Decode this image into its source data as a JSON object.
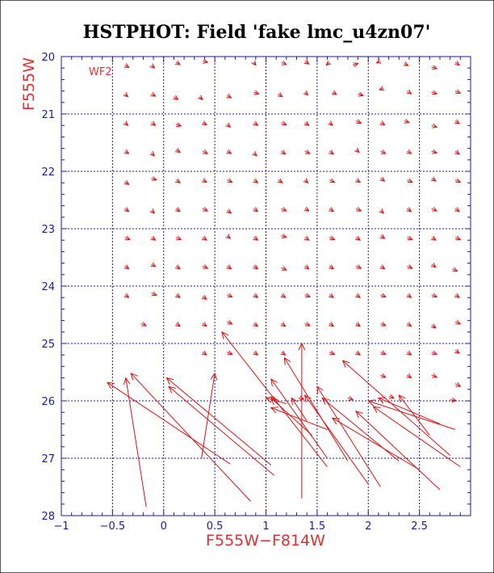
{
  "colors": {
    "axis": "#1a1aa6",
    "grid": "#1a1aa6",
    "vector": "#e01010",
    "label": "#e03030"
  },
  "chart_data": {
    "type": "vector",
    "title": "HSTPHOT: Field 'fake lmc_u4zn07'",
    "xlabel": "F555W−F814W",
    "ylabel": "F555W",
    "panel_label": "WF2",
    "xlim": [
      -1.0,
      3.0
    ],
    "ylim": [
      28.0,
      20.0
    ],
    "y_inverted": true,
    "grid": true,
    "x_ticks": [
      {
        "value": -1,
        "label": "−1"
      },
      {
        "value": -0.5,
        "label": "−0.5"
      },
      {
        "value": 0,
        "label": "0"
      },
      {
        "value": 0.5,
        "label": "0.5"
      },
      {
        "value": 1,
        "label": "1"
      },
      {
        "value": 1.5,
        "label": "1.5"
      },
      {
        "value": 2,
        "label": "2"
      },
      {
        "value": 2.5,
        "label": "2.5"
      }
    ],
    "y_ticks": [
      {
        "value": 20,
        "label": "20"
      },
      {
        "value": 21,
        "label": "21"
      },
      {
        "value": 22,
        "label": "22"
      },
      {
        "value": 23,
        "label": "23"
      },
      {
        "value": 24,
        "label": "24"
      },
      {
        "value": 25,
        "label": "25"
      },
      {
        "value": 26,
        "label": "26"
      },
      {
        "value": 27,
        "label": "27"
      },
      {
        "value": 28,
        "label": "28"
      }
    ],
    "x_grid": [
      -0.5,
      0,
      0.5,
      1,
      1.5,
      2,
      2.5
    ],
    "y_grid": [
      21,
      22,
      23,
      24,
      25,
      26,
      27
    ],
    "small_vectors": [
      {
        "x": -0.38,
        "y": 20.15,
        "dx": 0.04,
        "dy": 0.04
      },
      {
        "x": -0.12,
        "y": 20.15,
        "dx": 0.03,
        "dy": 0.05
      },
      {
        "x": 0.12,
        "y": 20.1,
        "dx": 0.04,
        "dy": 0.04
      },
      {
        "x": 0.38,
        "y": 20.08,
        "dx": 0.05,
        "dy": 0.02
      },
      {
        "x": 0.88,
        "y": 20.1,
        "dx": 0.02,
        "dy": 0.05
      },
      {
        "x": 1.15,
        "y": 20.1,
        "dx": 0.05,
        "dy": 0.04
      },
      {
        "x": 1.38,
        "y": 20.08,
        "dx": 0.04,
        "dy": 0.05
      },
      {
        "x": 1.62,
        "y": 20.1,
        "dx": -0.03,
        "dy": 0.05
      },
      {
        "x": 1.85,
        "y": 20.15,
        "dx": 0.05,
        "dy": -0.03
      },
      {
        "x": 2.12,
        "y": 20.08,
        "dx": -0.04,
        "dy": 0.03
      },
      {
        "x": 2.35,
        "y": 20.12,
        "dx": 0.04,
        "dy": 0.04
      },
      {
        "x": 2.62,
        "y": 20.18,
        "dx": 0.05,
        "dy": 0.03
      },
      {
        "x": 2.85,
        "y": 20.1,
        "dx": 0.04,
        "dy": 0.05
      },
      {
        "x": -0.38,
        "y": 20.65,
        "dx": 0.03,
        "dy": 0.05
      },
      {
        "x": -0.12,
        "y": 20.65,
        "dx": 0.04,
        "dy": 0.04
      },
      {
        "x": 0.1,
        "y": 20.7,
        "dx": 0.04,
        "dy": 0.05
      },
      {
        "x": 0.35,
        "y": 20.7,
        "dx": 0.03,
        "dy": 0.05
      },
      {
        "x": 0.62,
        "y": 20.68,
        "dx": 0.04,
        "dy": 0.04
      },
      {
        "x": 0.88,
        "y": 20.62,
        "dx": 0.05,
        "dy": 0.03
      },
      {
        "x": 1.12,
        "y": 20.65,
        "dx": 0.04,
        "dy": 0.05
      },
      {
        "x": 1.38,
        "y": 20.62,
        "dx": 0.03,
        "dy": 0.05
      },
      {
        "x": 1.65,
        "y": 20.62,
        "dx": 0.04,
        "dy": 0.04
      },
      {
        "x": 1.9,
        "y": 20.65,
        "dx": 0.05,
        "dy": 0.03
      },
      {
        "x": 2.15,
        "y": 20.55,
        "dx": -0.04,
        "dy": 0.03
      },
      {
        "x": 2.38,
        "y": 20.6,
        "dx": 0.04,
        "dy": 0.05
      },
      {
        "x": 2.62,
        "y": 20.62,
        "dx": 0.05,
        "dy": 0.03
      },
      {
        "x": 2.85,
        "y": 20.6,
        "dx": 0.05,
        "dy": 0.04
      },
      {
        "x": -0.38,
        "y": 21.15,
        "dx": 0.03,
        "dy": 0.05
      },
      {
        "x": -0.12,
        "y": 21.15,
        "dx": 0.04,
        "dy": 0.05
      },
      {
        "x": 0.12,
        "y": 21.18,
        "dx": 0.05,
        "dy": 0.03
      },
      {
        "x": 0.38,
        "y": 21.15,
        "dx": 0.04,
        "dy": 0.04
      },
      {
        "x": 0.62,
        "y": 21.18,
        "dx": 0.03,
        "dy": 0.05
      },
      {
        "x": 0.88,
        "y": 21.15,
        "dx": 0.04,
        "dy": 0.05
      },
      {
        "x": 1.15,
        "y": 21.15,
        "dx": 0.05,
        "dy": 0.04
      },
      {
        "x": 1.38,
        "y": 21.15,
        "dx": 0.04,
        "dy": 0.05
      },
      {
        "x": 1.62,
        "y": 21.15,
        "dx": 0.03,
        "dy": 0.05
      },
      {
        "x": 1.88,
        "y": 21.12,
        "dx": 0.05,
        "dy": 0.04
      },
      {
        "x": 2.12,
        "y": 21.15,
        "dx": 0.04,
        "dy": 0.04
      },
      {
        "x": 2.35,
        "y": 21.12,
        "dx": 0.05,
        "dy": 0.03
      },
      {
        "x": 2.62,
        "y": 21.2,
        "dx": 0.05,
        "dy": 0.03
      },
      {
        "x": 2.85,
        "y": 21.12,
        "dx": 0.04,
        "dy": 0.05
      },
      {
        "x": -0.38,
        "y": 21.65,
        "dx": 0.04,
        "dy": 0.04
      },
      {
        "x": -0.12,
        "y": 21.68,
        "dx": 0.03,
        "dy": 0.05
      },
      {
        "x": 0.12,
        "y": 21.62,
        "dx": 0.04,
        "dy": 0.05
      },
      {
        "x": 0.38,
        "y": 21.65,
        "dx": 0.05,
        "dy": 0.04
      },
      {
        "x": 0.62,
        "y": 21.65,
        "dx": 0.04,
        "dy": 0.04
      },
      {
        "x": 0.88,
        "y": 21.68,
        "dx": 0.03,
        "dy": 0.05
      },
      {
        "x": 1.15,
        "y": 21.65,
        "dx": 0.04,
        "dy": 0.05
      },
      {
        "x": 1.38,
        "y": 21.65,
        "dx": 0.05,
        "dy": 0.04
      },
      {
        "x": 1.62,
        "y": 21.65,
        "dx": 0.04,
        "dy": 0.05
      },
      {
        "x": 1.88,
        "y": 21.62,
        "dx": 0.03,
        "dy": 0.05
      },
      {
        "x": 2.12,
        "y": 21.65,
        "dx": 0.05,
        "dy": 0.04
      },
      {
        "x": 2.38,
        "y": 21.65,
        "dx": 0.04,
        "dy": 0.04
      },
      {
        "x": 2.62,
        "y": 21.65,
        "dx": 0.05,
        "dy": 0.03
      },
      {
        "x": 2.85,
        "y": 21.65,
        "dx": 0.04,
        "dy": 0.05
      },
      {
        "x": -0.38,
        "y": 22.18,
        "dx": 0.04,
        "dy": 0.05
      },
      {
        "x": -0.12,
        "y": 22.12,
        "dx": 0.05,
        "dy": 0.03
      },
      {
        "x": 0.12,
        "y": 22.15,
        "dx": 0.04,
        "dy": 0.05
      },
      {
        "x": 0.38,
        "y": 22.15,
        "dx": 0.04,
        "dy": 0.04
      },
      {
        "x": 0.62,
        "y": 22.15,
        "dx": 0.05,
        "dy": 0.04
      },
      {
        "x": 0.88,
        "y": 22.15,
        "dx": 0.04,
        "dy": 0.05
      },
      {
        "x": 1.12,
        "y": 22.15,
        "dx": 0.04,
        "dy": 0.05
      },
      {
        "x": 1.38,
        "y": 22.15,
        "dx": 0.03,
        "dy": 0.05
      },
      {
        "x": 1.62,
        "y": 22.15,
        "dx": 0.05,
        "dy": 0.04
      },
      {
        "x": 1.88,
        "y": 22.15,
        "dx": 0.04,
        "dy": 0.04
      },
      {
        "x": 2.12,
        "y": 22.12,
        "dx": 0.04,
        "dy": 0.05
      },
      {
        "x": 2.38,
        "y": 22.15,
        "dx": 0.05,
        "dy": 0.04
      },
      {
        "x": 2.62,
        "y": 22.12,
        "dx": 0.04,
        "dy": 0.05
      },
      {
        "x": 2.85,
        "y": 22.15,
        "dx": 0.05,
        "dy": 0.04
      },
      {
        "x": -0.38,
        "y": 22.65,
        "dx": 0.04,
        "dy": 0.05
      },
      {
        "x": -0.12,
        "y": 22.68,
        "dx": 0.03,
        "dy": 0.05
      },
      {
        "x": 0.12,
        "y": 22.65,
        "dx": 0.04,
        "dy": 0.05
      },
      {
        "x": 0.38,
        "y": 22.65,
        "dx": 0.05,
        "dy": 0.04
      },
      {
        "x": 0.62,
        "y": 22.68,
        "dx": 0.04,
        "dy": 0.05
      },
      {
        "x": 0.88,
        "y": 22.65,
        "dx": 0.04,
        "dy": 0.05
      },
      {
        "x": 1.15,
        "y": 22.65,
        "dx": 0.05,
        "dy": 0.04
      },
      {
        "x": 1.38,
        "y": 22.65,
        "dx": 0.04,
        "dy": 0.04
      },
      {
        "x": 1.62,
        "y": 22.65,
        "dx": 0.04,
        "dy": 0.05
      },
      {
        "x": 1.88,
        "y": 22.65,
        "dx": 0.05,
        "dy": 0.04
      },
      {
        "x": 2.12,
        "y": 22.68,
        "dx": 0.03,
        "dy": 0.05
      },
      {
        "x": 2.38,
        "y": 22.65,
        "dx": 0.04,
        "dy": 0.05
      },
      {
        "x": 2.62,
        "y": 22.65,
        "dx": 0.05,
        "dy": 0.04
      },
      {
        "x": 2.85,
        "y": 22.65,
        "dx": 0.04,
        "dy": 0.05
      },
      {
        "x": -0.38,
        "y": 23.15,
        "dx": 0.05,
        "dy": 0.04
      },
      {
        "x": -0.12,
        "y": 23.15,
        "dx": 0.04,
        "dy": 0.05
      },
      {
        "x": 0.12,
        "y": 23.15,
        "dx": 0.05,
        "dy": 0.04
      },
      {
        "x": 0.38,
        "y": 23.15,
        "dx": 0.04,
        "dy": 0.05
      },
      {
        "x": 0.62,
        "y": 23.12,
        "dx": 0.03,
        "dy": 0.05
      },
      {
        "x": 0.88,
        "y": 23.15,
        "dx": 0.04,
        "dy": 0.05
      },
      {
        "x": 1.15,
        "y": 23.12,
        "dx": 0.05,
        "dy": 0.03
      },
      {
        "x": 1.38,
        "y": 23.15,
        "dx": 0.04,
        "dy": 0.05
      },
      {
        "x": 1.62,
        "y": 23.15,
        "dx": 0.05,
        "dy": 0.04
      },
      {
        "x": 1.88,
        "y": 23.15,
        "dx": 0.04,
        "dy": 0.05
      },
      {
        "x": 2.12,
        "y": 23.12,
        "dx": 0.04,
        "dy": 0.05
      },
      {
        "x": 2.38,
        "y": 23.15,
        "dx": 0.05,
        "dy": 0.04
      },
      {
        "x": 2.62,
        "y": 23.15,
        "dx": 0.04,
        "dy": 0.05
      },
      {
        "x": 2.85,
        "y": 23.15,
        "dx": 0.05,
        "dy": 0.04
      },
      {
        "x": -0.38,
        "y": 23.65,
        "dx": 0.04,
        "dy": 0.05
      },
      {
        "x": -0.12,
        "y": 23.62,
        "dx": 0.04,
        "dy": 0.04
      },
      {
        "x": 0.12,
        "y": 23.65,
        "dx": 0.04,
        "dy": 0.05
      },
      {
        "x": 0.38,
        "y": 23.65,
        "dx": 0.05,
        "dy": 0.04
      },
      {
        "x": 0.62,
        "y": 23.65,
        "dx": 0.04,
        "dy": 0.05
      },
      {
        "x": 0.88,
        "y": 23.65,
        "dx": 0.04,
        "dy": 0.05
      },
      {
        "x": 1.15,
        "y": 23.68,
        "dx": 0.05,
        "dy": 0.04
      },
      {
        "x": 1.38,
        "y": 23.65,
        "dx": 0.04,
        "dy": 0.05
      },
      {
        "x": 1.62,
        "y": 23.65,
        "dx": 0.04,
        "dy": 0.05
      },
      {
        "x": 1.88,
        "y": 23.65,
        "dx": 0.05,
        "dy": 0.04
      },
      {
        "x": 2.12,
        "y": 23.65,
        "dx": 0.04,
        "dy": 0.05
      },
      {
        "x": 2.38,
        "y": 23.65,
        "dx": 0.05,
        "dy": 0.04
      },
      {
        "x": 2.62,
        "y": 23.62,
        "dx": 0.04,
        "dy": 0.05
      },
      {
        "x": 2.82,
        "y": 23.7,
        "dx": 0.05,
        "dy": 0.04
      },
      {
        "x": -0.38,
        "y": 24.15,
        "dx": 0.04,
        "dy": 0.05
      },
      {
        "x": -0.12,
        "y": 24.12,
        "dx": 0.05,
        "dy": 0.04
      },
      {
        "x": 0.12,
        "y": 24.15,
        "dx": 0.04,
        "dy": 0.05
      },
      {
        "x": 0.38,
        "y": 24.18,
        "dx": 0.04,
        "dy": 0.05
      },
      {
        "x": 0.62,
        "y": 24.15,
        "dx": 0.05,
        "dy": 0.04
      },
      {
        "x": 0.88,
        "y": 24.15,
        "dx": 0.04,
        "dy": 0.05
      },
      {
        "x": 1.15,
        "y": 24.15,
        "dx": 0.04,
        "dy": 0.05
      },
      {
        "x": 1.38,
        "y": 24.15,
        "dx": 0.05,
        "dy": 0.04
      },
      {
        "x": 1.62,
        "y": 24.15,
        "dx": 0.04,
        "dy": 0.05
      },
      {
        "x": 1.88,
        "y": 24.15,
        "dx": 0.04,
        "dy": 0.05
      },
      {
        "x": 2.12,
        "y": 24.15,
        "dx": 0.05,
        "dy": 0.04
      },
      {
        "x": 2.38,
        "y": 24.15,
        "dx": 0.04,
        "dy": 0.05
      },
      {
        "x": 2.62,
        "y": 24.15,
        "dx": 0.05,
        "dy": 0.04
      },
      {
        "x": 2.85,
        "y": 24.15,
        "dx": 0.04,
        "dy": 0.05
      },
      {
        "x": -0.22,
        "y": 24.65,
        "dx": 0.05,
        "dy": 0.04
      },
      {
        "x": 0.12,
        "y": 24.65,
        "dx": 0.04,
        "dy": 0.05
      },
      {
        "x": 0.38,
        "y": 24.65,
        "dx": 0.04,
        "dy": 0.05
      },
      {
        "x": 0.62,
        "y": 24.62,
        "dx": 0.05,
        "dy": 0.04
      },
      {
        "x": 0.88,
        "y": 24.65,
        "dx": 0.04,
        "dy": 0.05
      },
      {
        "x": 1.15,
        "y": 24.65,
        "dx": 0.04,
        "dy": 0.05
      },
      {
        "x": 1.38,
        "y": 24.65,
        "dx": 0.05,
        "dy": 0.04
      },
      {
        "x": 1.62,
        "y": 24.65,
        "dx": 0.04,
        "dy": 0.05
      },
      {
        "x": 1.88,
        "y": 24.65,
        "dx": 0.04,
        "dy": 0.05
      },
      {
        "x": 2.12,
        "y": 24.65,
        "dx": 0.05,
        "dy": 0.04
      },
      {
        "x": 2.38,
        "y": 24.65,
        "dx": 0.04,
        "dy": 0.05
      },
      {
        "x": 2.62,
        "y": 24.68,
        "dx": 0.04,
        "dy": 0.05
      },
      {
        "x": 2.85,
        "y": 24.62,
        "dx": 0.05,
        "dy": 0.04
      },
      {
        "x": 0.38,
        "y": 25.15,
        "dx": 0.04,
        "dy": 0.05
      },
      {
        "x": 0.62,
        "y": 25.15,
        "dx": 0.05,
        "dy": 0.04
      },
      {
        "x": 0.88,
        "y": 25.15,
        "dx": 0.04,
        "dy": 0.05
      },
      {
        "x": 1.15,
        "y": 25.15,
        "dx": 0.04,
        "dy": 0.05
      },
      {
        "x": 1.62,
        "y": 25.15,
        "dx": 0.05,
        "dy": 0.04
      },
      {
        "x": 1.88,
        "y": 25.15,
        "dx": 0.04,
        "dy": 0.05
      },
      {
        "x": 2.12,
        "y": 25.15,
        "dx": 0.05,
        "dy": 0.04
      },
      {
        "x": 2.38,
        "y": 25.15,
        "dx": 0.04,
        "dy": 0.05
      },
      {
        "x": 2.62,
        "y": 25.15,
        "dx": 0.05,
        "dy": 0.04
      },
      {
        "x": 2.85,
        "y": 25.12,
        "dx": 0.04,
        "dy": 0.05
      },
      {
        "x": 2.12,
        "y": 25.55,
        "dx": 0.05,
        "dy": 0.04
      },
      {
        "x": 2.38,
        "y": 25.55,
        "dx": 0.04,
        "dy": 0.05
      },
      {
        "x": 2.62,
        "y": 25.55,
        "dx": 0.05,
        "dy": 0.04
      },
      {
        "x": 2.85,
        "y": 25.7,
        "dx": 0.05,
        "dy": 0.05
      },
      {
        "x": 1.05,
        "y": 25.95,
        "dx": 0.05,
        "dy": 0.03
      },
      {
        "x": 1.32,
        "y": 25.95,
        "dx": 0.05,
        "dy": 0.02
      },
      {
        "x": 1.8,
        "y": 25.95,
        "dx": 0.05,
        "dy": 0.03
      },
      {
        "x": 2.2,
        "y": 25.92,
        "dx": 0.05,
        "dy": 0.03
      },
      {
        "x": 2.8,
        "y": 25.98,
        "dx": 0.06,
        "dy": 0.02
      }
    ],
    "long_vectors": [
      {
        "x0": -0.17,
        "y0": 27.85,
        "x1": -0.37,
        "y1": 25.6
      },
      {
        "x0": 0.85,
        "y0": 27.75,
        "x1": -0.32,
        "y1": 25.52
      },
      {
        "x0": 0.65,
        "y0": 27.1,
        "x1": -0.55,
        "y1": 25.68
      },
      {
        "x0": 1.05,
        "y0": 27.12,
        "x1": 0.03,
        "y1": 25.6
      },
      {
        "x0": 1.08,
        "y0": 27.3,
        "x1": 0.05,
        "y1": 25.75
      },
      {
        "x0": 0.37,
        "y0": 27.0,
        "x1": 0.5,
        "y1": 25.52
      },
      {
        "x0": 1.35,
        "y0": 27.7,
        "x1": 1.35,
        "y1": 25.0
      },
      {
        "x0": 1.6,
        "y0": 27.15,
        "x1": 0.57,
        "y1": 24.8
      },
      {
        "x0": 1.6,
        "y0": 27.0,
        "x1": 1.05,
        "y1": 25.62
      },
      {
        "x0": 1.45,
        "y0": 26.6,
        "x1": 1.05,
        "y1": 25.95
      },
      {
        "x0": 1.6,
        "y0": 26.5,
        "x1": 1.05,
        "y1": 26.12
      },
      {
        "x0": 1.8,
        "y0": 27.05,
        "x1": 1.18,
        "y1": 25.25
      },
      {
        "x0": 2.0,
        "y0": 27.45,
        "x1": 1.38,
        "y1": 25.9
      },
      {
        "x0": 2.12,
        "y0": 27.5,
        "x1": 1.5,
        "y1": 25.75
      },
      {
        "x0": 2.3,
        "y0": 27.05,
        "x1": 1.55,
        "y1": 25.95
      },
      {
        "x0": 2.5,
        "y0": 27.2,
        "x1": 1.65,
        "y1": 26.3
      },
      {
        "x0": 2.7,
        "y0": 27.55,
        "x1": 1.88,
        "y1": 26.18
      },
      {
        "x0": 2.8,
        "y0": 26.95,
        "x1": 1.75,
        "y1": 25.3
      },
      {
        "x0": 2.9,
        "y0": 27.15,
        "x1": 2.05,
        "y1": 26.1
      },
      {
        "x0": 2.85,
        "y0": 26.5,
        "x1": 2.0,
        "y1": 26.0
      },
      {
        "x0": 2.7,
        "y0": 26.4,
        "x1": 2.1,
        "y1": 25.95
      },
      {
        "x0": 2.6,
        "y0": 26.6,
        "x1": 2.3,
        "y1": 25.9
      },
      {
        "x0": 1.4,
        "y0": 26.35,
        "x1": 1.25,
        "y1": 25.95
      },
      {
        "x0": 1.2,
        "y0": 26.05,
        "x1": 1.0,
        "y1": 25.95
      }
    ]
  }
}
